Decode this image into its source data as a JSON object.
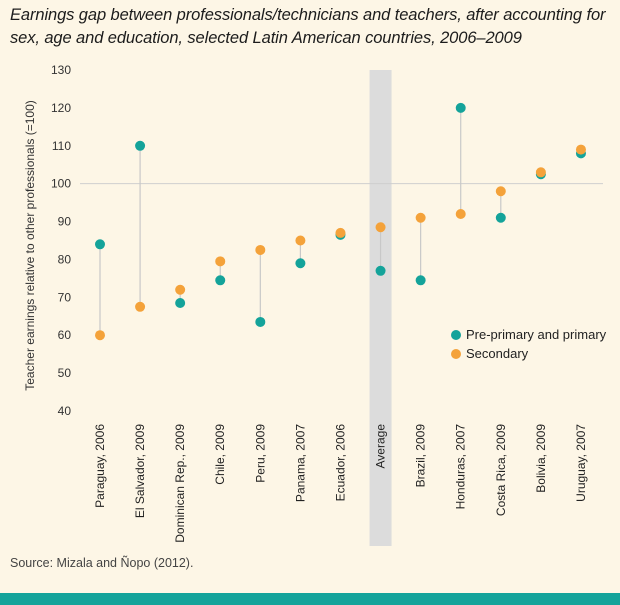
{
  "title": "Earnings gap between professionals/technicians and teachers, after accounting for sex, age and education, selected Latin American countries, 2006–2009",
  "source": "Source: Mizala and Ñopo (2012).",
  "colors": {
    "primary": "#14a39a",
    "secondary": "#f4a23a",
    "average_band": "#dcdcdc",
    "connector": "#c8c8c8",
    "reference_line": "#cfcfcf",
    "background": "#fdf6e6"
  },
  "chart_data": {
    "type": "scatter",
    "title": "Earnings gap between professionals/technicians and teachers, after accounting for sex, age and education, selected Latin American countries, 2006–2009",
    "ylabel": "Teacher earnings relative to other professionals (=100)",
    "xlabel": "",
    "ylim": [
      40,
      130
    ],
    "yticks": [
      40,
      50,
      60,
      70,
      80,
      90,
      100,
      110,
      120,
      130
    ],
    "reference_line": 100,
    "legend_position": "right",
    "highlighted_category": "Average",
    "categories": [
      "Paraguay, 2006",
      "El Salvador, 2009",
      "Dominican Rep., 2009",
      "Chile, 2009",
      "Peru, 2009",
      "Panama, 2007",
      "Ecuador, 2006",
      "Average",
      "Brazil, 2009",
      "Honduras, 2007",
      "Costa Rica, 2009",
      "Bolivia, 2009",
      "Uruguay, 2007"
    ],
    "series": [
      {
        "name": "Pre-primary and primary",
        "color": "#14a39a",
        "values": [
          84,
          110,
          68.5,
          74.5,
          63.5,
          79,
          86.5,
          77,
          74.5,
          120,
          91,
          102.5,
          108
        ]
      },
      {
        "name": "Secondary",
        "color": "#f4a23a",
        "values": [
          60,
          67.5,
          72,
          79.5,
          82.5,
          85,
          87,
          88.5,
          91,
          92,
          98,
          103,
          109
        ]
      }
    ]
  }
}
